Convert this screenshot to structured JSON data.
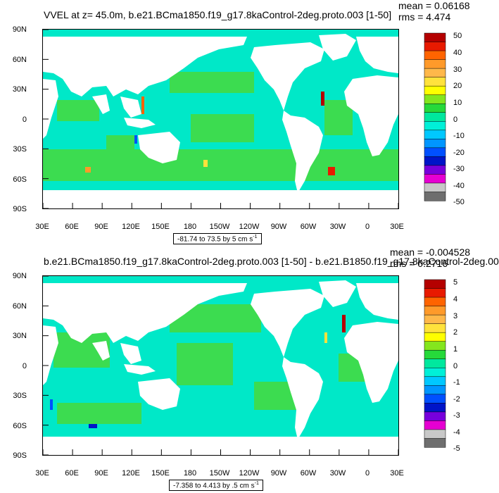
{
  "panels": [
    {
      "title": "VVEL at z=  45.0m, b.e21.BCma1850.f19_g17.8kaControl-2deg.proto.003 [1-50]",
      "mean": "mean = 0.06168",
      "rms": "rms = 4.474",
      "range": "-81.74 to 73.5 by 5 cm s",
      "range_sup": "-1",
      "colorbar_labels": [
        "50",
        "40",
        "30",
        "20",
        "10",
        "0",
        "-10",
        "-20",
        "-30",
        "-40",
        "-50"
      ]
    },
    {
      "title": "b.e21.BCma1850.f19_g17.8kaControl-2deg.proto.003 [1-50] - b.e21.B1850.f19_g17.8kaControl-2deg.00",
      "mean": "mean = -0.004528",
      "rms": "rms = 0.2716",
      "range": "-7.358 to 4.413 by .5 cm s",
      "range_sup": "-1",
      "colorbar_labels": [
        "5",
        "4",
        "3",
        "2",
        "1",
        "0",
        "-1",
        "-2",
        "-3",
        "-4",
        "-5"
      ]
    }
  ],
  "lat_labels": [
    "90N",
    "60N",
    "30N",
    "0",
    "30S",
    "60S",
    "90S"
  ],
  "lon_labels": [
    "30E",
    "60E",
    "90E",
    "120E",
    "150E",
    "180",
    "150W",
    "120W",
    "90W",
    "60W",
    "30W",
    "0",
    "30E"
  ],
  "colors": {
    "colorbar": [
      "#b40000",
      "#e81a00",
      "#ff6400",
      "#ff9a2a",
      "#ffb84a",
      "#ffe23c",
      "#ffff00",
      "#84e61e",
      "#26d93a",
      "#00e89e",
      "#00f0d8",
      "#00c8ff",
      "#0096ff",
      "#0050ff",
      "#0014c8",
      "#7800dc",
      "#e600d2",
      "#c8c8c8",
      "#6e6e6e"
    ],
    "ocean_cyan": "#00e8c8",
    "ocean_green": "#3cdc50",
    "land": "#ffffff"
  }
}
